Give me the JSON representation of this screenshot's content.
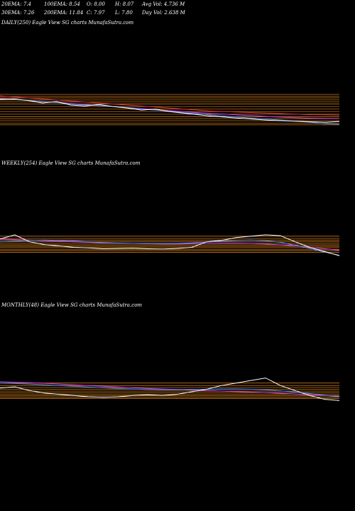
{
  "header": {
    "row1": [
      "20EMA: 7.4",
      "100EMA: 8.54",
      "O: 8.00",
      "H: 8.07",
      "Avg Vol: 4.736  M"
    ],
    "row2": [
      "30EMA: 7.26",
      "200EMA: 11.84",
      "C: 7.97",
      "L: 7.80",
      "Day Vol: 2.638  M"
    ]
  },
  "chart_data": [
    {
      "type": "line",
      "title": "DAILY(250) Eagle   View  SG charts MunafaSutra.com",
      "ylim": [
        7,
        14
      ],
      "level_color": "#c8781a",
      "levels": [
        13.3,
        12.9,
        12.6,
        12.2,
        11.8,
        11.4,
        10.9,
        10.4,
        9.9,
        9.4,
        8.9,
        8.5,
        8.1,
        7.6,
        7.3
      ],
      "series": [
        {
          "color": "#e03040",
          "values": [
            13.0,
            12.8,
            12.6,
            12.4,
            12.2,
            12.0,
            11.8,
            11.6,
            11.4,
            11.2,
            11.0,
            10.8,
            10.6,
            10.4,
            10.2,
            10.0,
            9.9,
            9.8,
            9.7,
            9.6,
            9.5,
            9.4,
            9.3,
            9.25,
            9.2
          ]
        },
        {
          "color": "#e040e0",
          "values": [
            12.5,
            12.3,
            12.1,
            11.9,
            11.7,
            11.5,
            11.3,
            11.1,
            10.9,
            10.7,
            10.5,
            10.3,
            10.1,
            9.9,
            9.7,
            9.5,
            9.4,
            9.2,
            9.1,
            8.9,
            8.8,
            8.7,
            8.6,
            8.55,
            8.54
          ]
        },
        {
          "color": "#4a8cff",
          "values": [
            12.4,
            12.3,
            12.1,
            11.9,
            11.7,
            11.4,
            11.2,
            11.1,
            10.9,
            10.7,
            10.4,
            10.2,
            10.0,
            9.7,
            9.5,
            9.2,
            9.0,
            8.8,
            8.6,
            8.4,
            8.2,
            8.0,
            7.8,
            7.5,
            7.4
          ]
        },
        {
          "color": "#ffffff",
          "values": [
            12.3,
            12.4,
            12.1,
            11.6,
            11.9,
            11.2,
            11.0,
            11.3,
            10.9,
            10.6,
            10.2,
            10.4,
            9.9,
            9.6,
            9.3,
            9.0,
            8.8,
            8.6,
            8.4,
            8.2,
            8.1,
            8.0,
            7.9,
            7.8,
            7.97
          ]
        }
      ]
    },
    {
      "type": "line",
      "title": "WEEKLY(254) Eagle   View  SG charts MunafaSutra.com",
      "ylim": [
        5,
        17
      ],
      "level_color": "#c8781a",
      "levels": [
        15,
        14.2,
        13.6,
        13,
        12.4,
        11.9,
        11.4,
        10.9,
        10.3,
        9.8,
        9.2
      ],
      "series": [
        {
          "color": "#e040e0",
          "values": [
            14,
            13.8,
            13.6,
            13.4,
            13.2,
            13,
            12.8,
            12.6,
            12.5,
            12.4,
            12.3,
            12.2,
            12.2,
            12.3,
            12.4,
            12.5,
            12.5,
            12.4,
            12.2,
            11.9,
            11.5,
            11,
            10.5,
            10
          ]
        },
        {
          "color": "#4a8cff",
          "values": [
            13,
            13.2,
            13.5,
            13.6,
            13.5,
            13.3,
            13,
            12.7,
            12.5,
            12.4,
            12.3,
            12.3,
            12.4,
            12.6,
            12.9,
            13.2,
            13.5,
            13.6,
            13.4,
            12.8,
            11.8,
            10.6,
            9.3,
            8.2
          ]
        },
        {
          "color": "#ffffff",
          "values": [
            14,
            15.5,
            13,
            12,
            11.5,
            11,
            10.8,
            10.5,
            10.6,
            10.7,
            10.5,
            10.4,
            10.6,
            11,
            13,
            13.5,
            14.5,
            15,
            15.5,
            15.2,
            13,
            11,
            9.5,
            8
          ]
        }
      ]
    },
    {
      "type": "line",
      "title": "MONTHLY(48) Eagle   View  SG charts MunafaSutra.com",
      "ylim": [
        5,
        20
      ],
      "level_color": "#c8781a",
      "levels": [
        15,
        14,
        13.2,
        12.5,
        11.8,
        11.2,
        10.6,
        10,
        9.4,
        8.8
      ],
      "series": [
        {
          "color": "#e040e0",
          "values": [
            15.5,
            15.3,
            15.1,
            14.9,
            14.6,
            14.3,
            14,
            13.7,
            13.4,
            13.1,
            12.8,
            12.6,
            12.4,
            12.2,
            12,
            11.8,
            11.6,
            11.4,
            11.2,
            10.9,
            10.6,
            10.3,
            10,
            9.7
          ]
        },
        {
          "color": "#4a8cff",
          "values": [
            15,
            14.8,
            14.6,
            14.3,
            14,
            13.7,
            13.4,
            13.1,
            12.8,
            12.6,
            12.4,
            12.3,
            12.3,
            12.4,
            12.5,
            12.6,
            12.6,
            12.5,
            12.3,
            11.9,
            11.4,
            10.8,
            10.1,
            9.5
          ]
        },
        {
          "color": "#ffffff",
          "values": [
            13,
            13.5,
            12,
            11,
            10.5,
            10,
            9.5,
            9.3,
            9.5,
            10,
            10.3,
            10,
            10.5,
            11.5,
            12.5,
            14,
            15,
            16,
            17,
            14,
            12,
            10,
            8.5,
            8
          ]
        }
      ]
    }
  ]
}
